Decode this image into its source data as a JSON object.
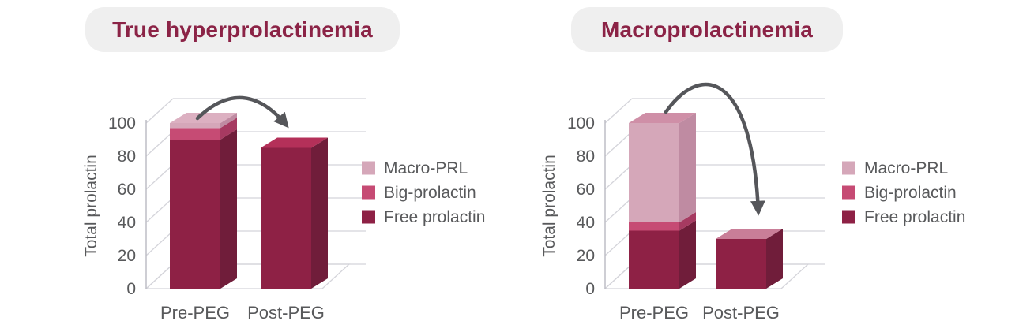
{
  "palette": {
    "background": "#ffffff",
    "title_text": "#8b2346",
    "title_pill_bg": "#efefef",
    "axis_text": "#58595b",
    "grid_line": "#d4d4da",
    "axis_line": "#bdbdc5",
    "arrow": "#55565a"
  },
  "chart_data": [
    {
      "type": "bar",
      "stacked": true,
      "title": "True hyperprolactinemia",
      "ylabel": "Total prolactin",
      "categories": [
        "Pre-PEG",
        "Post-PEG"
      ],
      "series": [
        {
          "name": "Free prolactin",
          "values": [
            90,
            85
          ],
          "color": "#8e2145",
          "side_color": "#701d3a"
        },
        {
          "name": "Big-prolactin",
          "values": [
            7,
            0
          ],
          "color": "#c64b74",
          "side_color": "#a63a61"
        },
        {
          "name": "Macro-PRL",
          "values": [
            3,
            0
          ],
          "color": "#d5a7b9",
          "side_color": "#bf8ba2"
        }
      ],
      "bar_top_colors": [
        "#dcb0c1",
        "#b43059"
      ],
      "ylim": [
        0,
        100
      ],
      "yticks": [
        0,
        20,
        40,
        60,
        80,
        100
      ],
      "grid": true,
      "legend": [
        "Macro-PRL",
        "Big-prolactin",
        "Free prolactin"
      ],
      "legend_position": "right",
      "annotation": {
        "type": "curved-arrow",
        "from": "Pre-PEG",
        "to": "Post-PEG"
      }
    },
    {
      "type": "bar",
      "stacked": true,
      "title": "Macroprolactinemia",
      "ylabel": "Total prolactin",
      "categories": [
        "Pre-PEG",
        "Post-PEG"
      ],
      "series": [
        {
          "name": "Free prolactin",
          "values": [
            35,
            30
          ],
          "color": "#8e2145",
          "side_color": "#701d3a"
        },
        {
          "name": "Big-prolactin",
          "values": [
            5,
            0
          ],
          "color": "#c64b74",
          "side_color": "#a63a61"
        },
        {
          "name": "Macro-PRL",
          "values": [
            60,
            0
          ],
          "color": "#d5a7b9",
          "side_color": "#bf8ba2"
        }
      ],
      "bar_top_colors": [
        "#cf8fa7",
        "#c97e98"
      ],
      "ylim": [
        0,
        100
      ],
      "yticks": [
        0,
        20,
        40,
        60,
        80,
        100
      ],
      "grid": true,
      "legend": [
        "Macro-PRL",
        "Big-prolactin",
        "Free prolactin"
      ],
      "legend_position": "right",
      "annotation": {
        "type": "curved-arrow",
        "from": "Pre-PEG",
        "to": "Post-PEG"
      }
    }
  ]
}
